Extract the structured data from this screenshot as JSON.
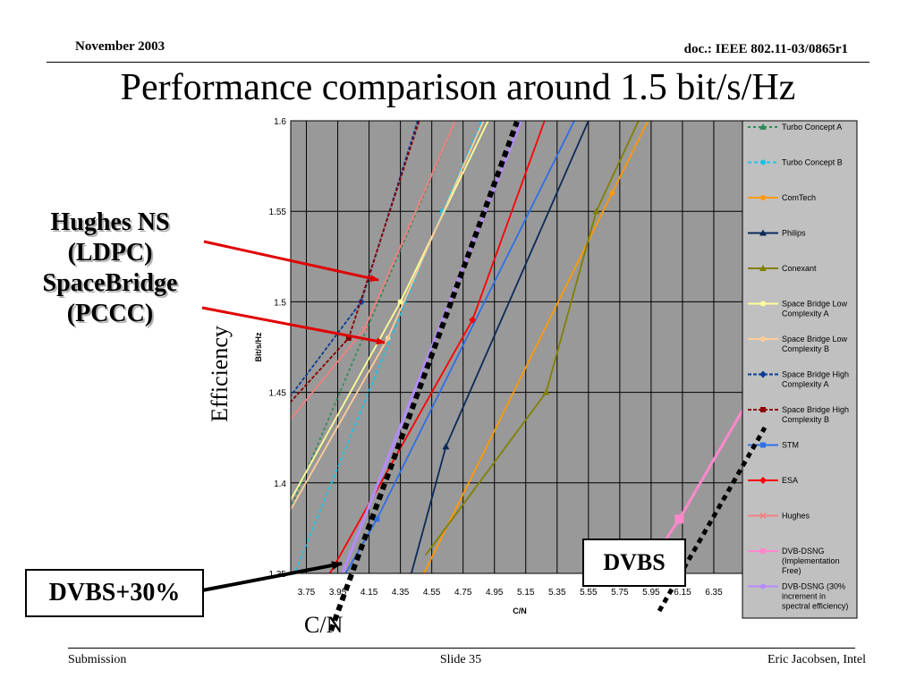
{
  "header": {
    "date": "November 2003",
    "doc": "doc.: IEEE 802.11-03/0865r1"
  },
  "title": "Performance comparison around 1.5 bit/s/Hz",
  "annotations": {
    "left_lines": [
      "Hughes NS",
      "(LDPC)",
      "SpaceBridge",
      "(PCCC)"
    ],
    "dvbs30": "DVBS+30%",
    "dvbs": "DVBS",
    "y_outer": "Efficiency",
    "x_outer": "C/N",
    "arrow_color": "#e00000"
  },
  "footer": {
    "left": "Submission",
    "center": "Slide 35",
    "right": "Eric Jacobsen, Intel"
  },
  "chart_data": {
    "type": "line",
    "xlabel": "C/N",
    "ylabel": "Bit/s/Hz",
    "xlim": [
      3.65,
      6.55
    ],
    "ylim": [
      1.35,
      1.6
    ],
    "x_ticks": [
      "3.75",
      "3.95",
      "4.15",
      "4.35",
      "4.55",
      "4.75",
      "4.95",
      "5.15",
      "5.35",
      "5.55",
      "5.75",
      "5.95",
      "6.15",
      "6.35"
    ],
    "y_ticks": [
      "1.35",
      "1.4",
      "1.45",
      "1.5",
      "1.55",
      "1.6"
    ],
    "grid": true,
    "plot_background": "#999999",
    "legend_background": "#c0c0c0",
    "legend_position": "right",
    "series": [
      {
        "name": "Turbo Concept A",
        "color": "#2e8b57",
        "dash": "3,3",
        "marker": "triangle",
        "points": [
          [
            3.62,
            1.38
          ],
          [
            4.7,
            1.6
          ]
        ]
      },
      {
        "name": "Turbo Concept B",
        "color": "#19c3e6",
        "dash": "4,3",
        "marker": "circle",
        "points": [
          [
            3.65,
            1.345
          ],
          [
            4.62,
            1.55
          ],
          [
            4.87,
            1.6
          ]
        ]
      },
      {
        "name": "ComTech",
        "color": "#ff9900",
        "dash": "",
        "marker": "circle",
        "points": [
          [
            4.5,
            1.35
          ],
          [
            5.7,
            1.56
          ],
          [
            5.93,
            1.6
          ]
        ]
      },
      {
        "name": "Philips",
        "color": "#0a2a5a",
        "dash": "",
        "marker": "triangle",
        "points": [
          [
            4.42,
            1.35
          ],
          [
            4.64,
            1.42
          ],
          [
            5.55,
            1.6
          ]
        ]
      },
      {
        "name": "Conexant",
        "color": "#808000",
        "dash": "",
        "marker": "triangle",
        "points": [
          [
            4.51,
            1.36
          ],
          [
            5.28,
            1.45
          ],
          [
            5.6,
            1.55
          ],
          [
            5.87,
            1.6
          ]
        ]
      },
      {
        "name": "Space Bridge Low\nComplexity A",
        "color": "#ffff99",
        "dash": "",
        "marker": "circle",
        "points": [
          [
            3.55,
            1.375
          ],
          [
            4.35,
            1.5
          ],
          [
            4.91,
            1.6
          ]
        ]
      },
      {
        "name": "Space Bridge Low\nComplexity B",
        "color": "#ffcc99",
        "dash": "",
        "marker": "circle",
        "points": [
          [
            3.55,
            1.37
          ],
          [
            4.27,
            1.48
          ],
          [
            4.88,
            1.6
          ]
        ]
      },
      {
        "name": "Space Bridge High\nComplexity A",
        "color": "#0a3c96",
        "dash": "4,2",
        "marker": "diamond",
        "points": [
          [
            3.58,
            1.44
          ],
          [
            4.1,
            1.5
          ],
          [
            4.46,
            1.6
          ]
        ]
      },
      {
        "name": "Space Bridge High\nComplexity B",
        "color": "#8b0000",
        "dash": "4,2",
        "marker": "square",
        "points": [
          [
            3.6,
            1.44
          ],
          [
            4.02,
            1.48
          ],
          [
            4.47,
            1.6
          ]
        ]
      },
      {
        "name": "STM",
        "color": "#2f6fe6",
        "dash": "",
        "marker": "square",
        "points": [
          [
            4.0,
            1.35
          ],
          [
            4.2,
            1.38
          ],
          [
            5.46,
            1.6
          ]
        ]
      },
      {
        "name": "ESA",
        "color": "#ff0000",
        "dash": "",
        "marker": "diamond",
        "points": [
          [
            3.9,
            1.35
          ],
          [
            4.81,
            1.49
          ],
          [
            5.27,
            1.6
          ]
        ]
      },
      {
        "name": "Hughes",
        "color": "#f28080",
        "dash": "",
        "marker": "x",
        "points": [
          [
            3.6,
            1.43
          ],
          [
            4.12,
            1.485
          ],
          [
            4.7,
            1.6
          ]
        ]
      },
      {
        "name": "DVB-DSNG\n(Implementation\nFree)",
        "color": "#ff88cc",
        "dash": "",
        "marker": "square",
        "points": [
          [
            5.9,
            1.35
          ],
          [
            6.13,
            1.38
          ],
          [
            6.6,
            1.45
          ]
        ]
      },
      {
        "name": "DVB-DSNG (30%\nincrement in\nspectral efficiency)",
        "color": "#b58bff",
        "dash": "",
        "marker": "circle",
        "points": [
          [
            3.98,
            1.35
          ],
          [
            5.12,
            1.6
          ]
        ]
      }
    ]
  }
}
